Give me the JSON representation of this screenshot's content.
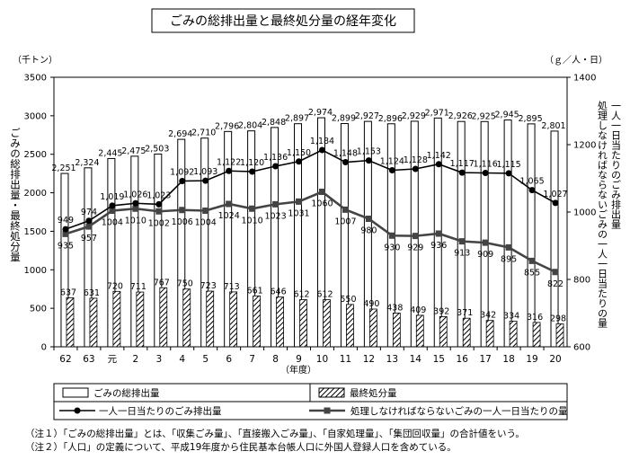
{
  "chart_data": {
    "type": "bar+line",
    "title": "ごみの総排出量と最終処分量の経年変化",
    "y_left_unit": "（千トン）",
    "y_left_label": "ごみの総排出量・最終処分量",
    "y_left_lim": [
      0,
      3500
    ],
    "y_left_ticks": [
      "0",
      "500",
      "1000",
      "1500",
      "2000",
      "2500",
      "3000",
      "3500"
    ],
    "y_right_unit": "（ｇ／人・日）",
    "y_right_label_1": "一人一日当たりのごみ排出量",
    "y_right_label_2": "処理しなければならないごみの一人一日当たりの量",
    "y_right_lim": [
      600,
      1400
    ],
    "y_right_ticks": [
      "600",
      "800",
      "1000",
      "1200",
      "1400"
    ],
    "xlabel": "（年度）",
    "categories": [
      "62",
      "63",
      "元",
      "2",
      "3",
      "4",
      "5",
      "6",
      "7",
      "8",
      "9",
      "10",
      "11",
      "12",
      "13",
      "14",
      "15",
      "16",
      "17",
      "18",
      "19",
      "20"
    ],
    "series": [
      {
        "name": "ごみの総排出量",
        "type": "bar",
        "axis": "left",
        "values": [
          2251,
          2324,
          2445,
          2475,
          2503,
          2694,
          2710,
          2796,
          2804,
          2848,
          2897,
          2974,
          2899,
          2927,
          2896,
          2929,
          2971,
          2926,
          2925,
          2945,
          2895,
          2801
        ],
        "labels": [
          "2,251",
          "2,324",
          "2,445",
          "2,475",
          "2,503",
          "2,694",
          "2,710",
          "2,796",
          "2,804",
          "2,848",
          "2,897",
          "2,974",
          "2,899",
          "2,927",
          "2,896",
          "2,929",
          "2,971",
          "2,926",
          "2,925",
          "2,945",
          "2,895",
          "2,801"
        ]
      },
      {
        "name": "最終処分量",
        "type": "bar",
        "axis": "left",
        "values": [
          637,
          631,
          720,
          711,
          767,
          750,
          723,
          713,
          661,
          646,
          612,
          612,
          550,
          490,
          438,
          409,
          392,
          371,
          342,
          334,
          316,
          298
        ],
        "labels": [
          "637",
          "631",
          "720",
          "711",
          "767",
          "750",
          "723",
          "713",
          "661",
          "646",
          "612",
          "612",
          "550",
          "490",
          "438",
          "409",
          "392",
          "371",
          "342",
          "334",
          "316",
          "298"
        ]
      },
      {
        "name": "一人一日当たりのごみ排出量",
        "type": "line",
        "axis": "right",
        "values": [
          949,
          974,
          1019,
          1026,
          1023,
          1092,
          1093,
          1122,
          1120,
          1136,
          1150,
          1184,
          1148,
          1153,
          1124,
          1128,
          1142,
          1117,
          1116,
          1115,
          1065,
          1027
        ],
        "labels": [
          "949",
          "974",
          "1,019",
          "1,026",
          "1,023",
          "1,092",
          "1,093",
          "1,122",
          "1,120",
          "1,136",
          "1,150",
          "1,184",
          "1,148",
          "1,153",
          "1,124",
          "1,128",
          "1,142",
          "1,117",
          "1,116",
          "1,115",
          "1,065",
          "1,027"
        ]
      },
      {
        "name": "処理しなければならないごみの一人一日当たりの量",
        "type": "line",
        "axis": "right",
        "values": [
          935,
          957,
          1004,
          1010,
          1002,
          1006,
          1004,
          1024,
          1010,
          1023,
          1031,
          1060,
          1007,
          980,
          930,
          929,
          936,
          913,
          909,
          895,
          855,
          822
        ],
        "labels": [
          "935",
          "957",
          "1004",
          "1010",
          "1002",
          "1006",
          "1004",
          "1024",
          "1010",
          "1023",
          "1031",
          "1060",
          "1007",
          "980",
          "930",
          "929",
          "936",
          "913",
          "909",
          "895",
          "855",
          "822"
        ]
      }
    ],
    "notes": [
      "（注１）「ごみの総排出量」とは、「収集ごみ量」、「直接搬入ごみ量」、「自家処理量」、「集団回収量」の合計値をいう。",
      "（注２）「人口」の定義について、平成19年度から住民基本台帳人口に外国人登録人口を含めている。"
    ]
  }
}
